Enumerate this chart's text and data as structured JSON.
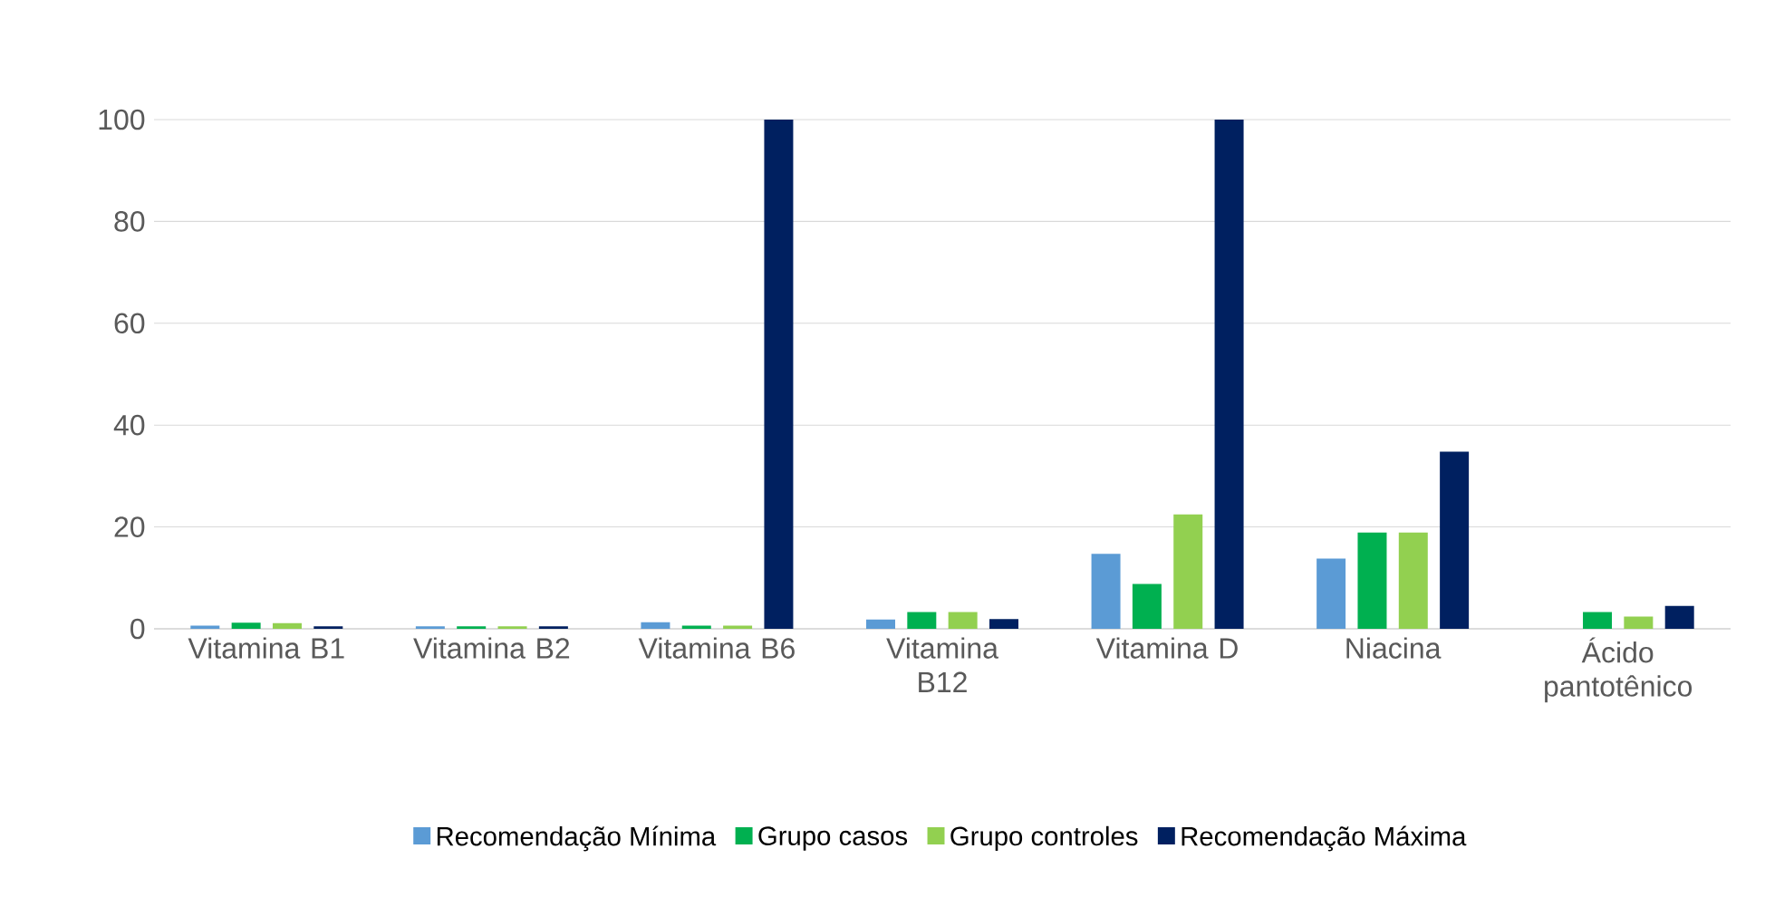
{
  "chart_data": {
    "type": "bar",
    "categories": [
      "Vitamina B1",
      "Vitamina B2",
      "Vitamina B6",
      "Vitamina B12",
      "Vitamina D",
      "Niacina",
      "Ácido pantotênico"
    ],
    "series": [
      {
        "name": "Recomendação Mínima",
        "color": "#5b9bd5",
        "values": [
          0.6,
          0.5,
          1.3,
          1.8,
          14.7,
          13.8,
          null
        ]
      },
      {
        "name": "Grupo casos",
        "color": "#00b050",
        "values": [
          1.2,
          0.5,
          0.6,
          3.3,
          8.8,
          18.9,
          3.3
        ]
      },
      {
        "name": "Grupo controles",
        "color": "#92d050",
        "values": [
          1.1,
          0.5,
          0.6,
          3.3,
          22.5,
          18.9,
          2.4
        ]
      },
      {
        "name": "Recomendação Máxima",
        "color": "#002060",
        "values": [
          0.5,
          0.5,
          100,
          1.9,
          100,
          34.8,
          4.5
        ]
      }
    ],
    "ylim": [
      0,
      100
    ],
    "yticks": [
      0,
      20,
      40,
      60,
      80,
      100
    ],
    "grid": "y",
    "legend": "bottom"
  }
}
